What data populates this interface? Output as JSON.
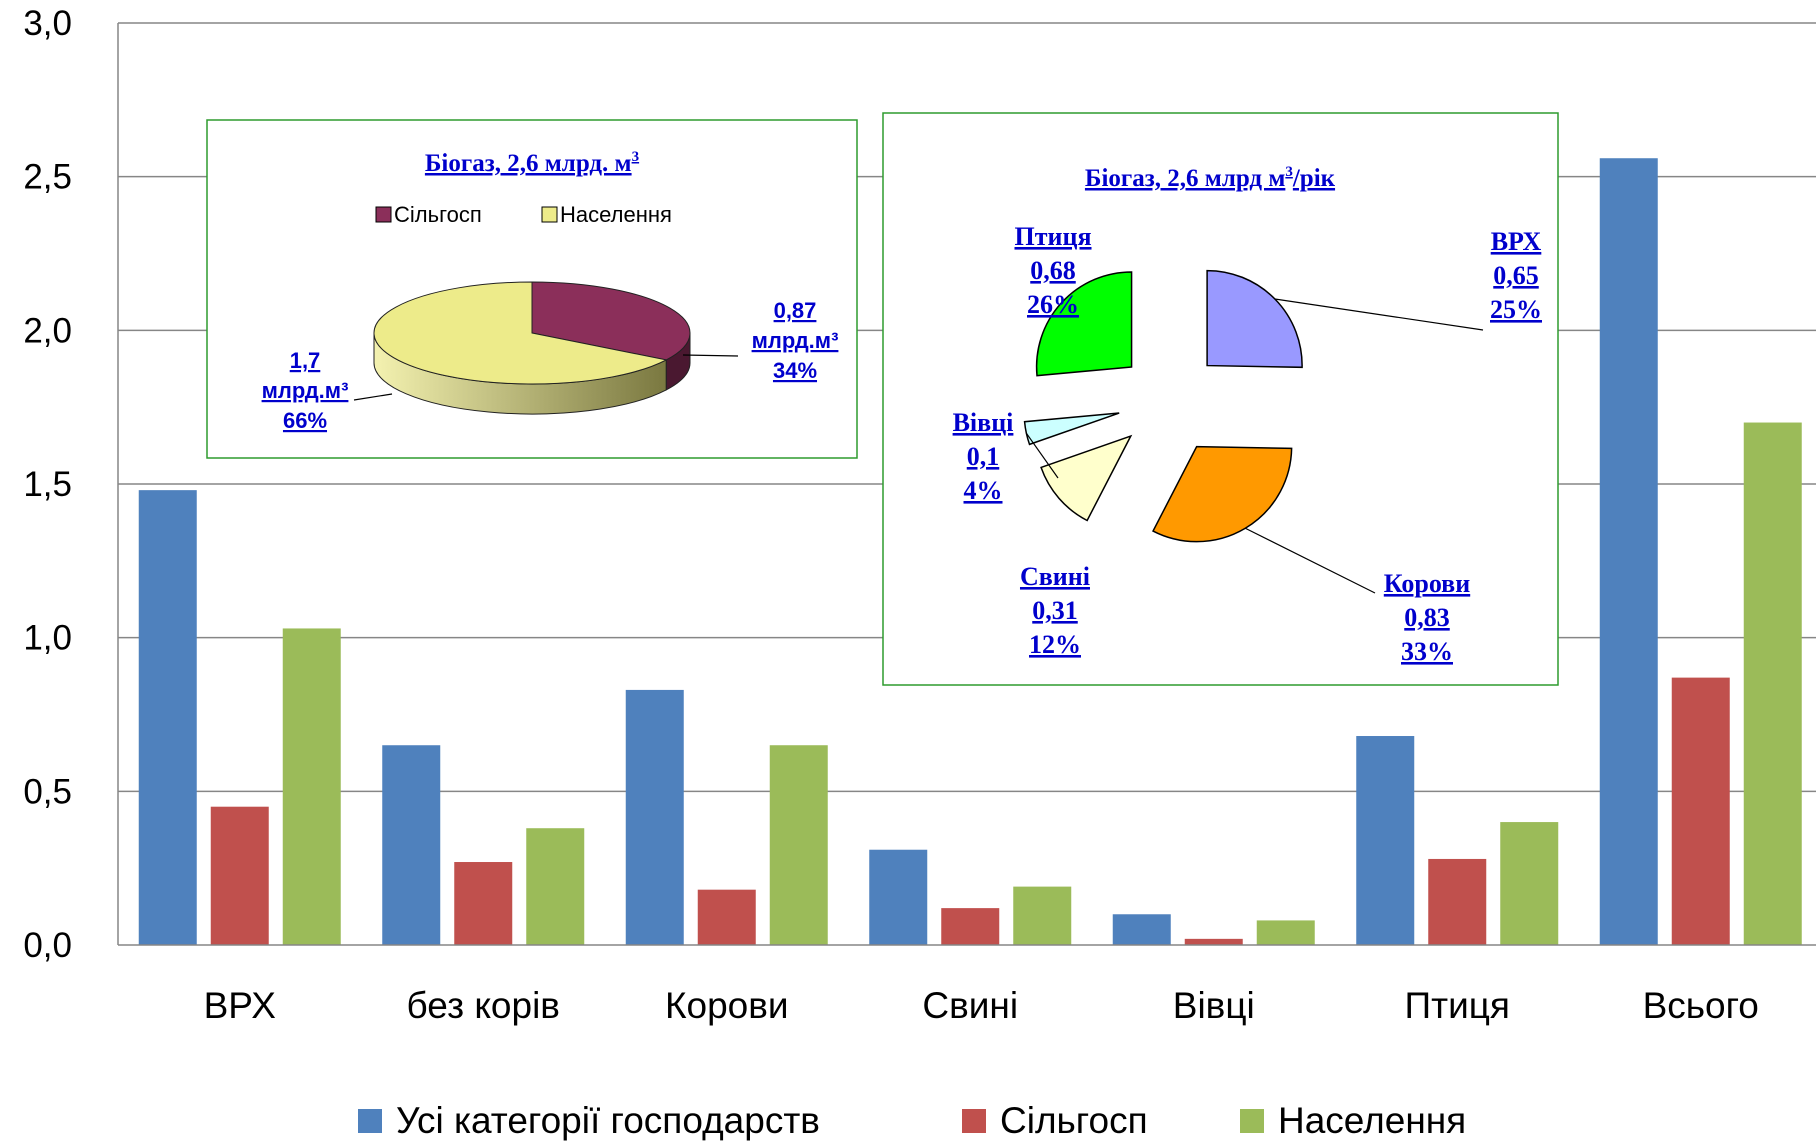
{
  "chart_data": [
    {
      "type": "bar",
      "categories": [
        "ВРХ",
        "без корів",
        "Корови",
        "Свині",
        "Вівці",
        "Птиця",
        "Всього"
      ],
      "series": [
        {
          "name": "Усі категорії господарств",
          "color": "#4F81BD",
          "values": [
            1.48,
            0.65,
            0.83,
            0.31,
            0.1,
            0.68,
            2.56
          ]
        },
        {
          "name": "Сільгосп",
          "color": "#C0504D",
          "values": [
            0.45,
            0.27,
            0.18,
            0.12,
            0.02,
            0.28,
            0.87
          ]
        },
        {
          "name": "Населення",
          "color": "#9BBB59",
          "values": [
            1.03,
            0.38,
            0.65,
            0.19,
            0.08,
            0.4,
            1.7
          ]
        }
      ],
      "ylim": [
        0,
        3.0
      ],
      "yticks": [
        "0,0",
        "0,5",
        "1,0",
        "1,5",
        "2,0",
        "2,5",
        "3,0"
      ],
      "grid": true,
      "legend": "bottom"
    },
    {
      "type": "pie",
      "title": "Біогаз,  2,6 млрд. м",
      "title_sup": "3",
      "legend_items": [
        "Сільгосп",
        "Населення"
      ],
      "slices": [
        {
          "label": "Сільгосп",
          "value": 0.87,
          "percent": 34,
          "color": "#8B2F5A",
          "label_lines": [
            "0,87",
            "млрд.м³",
            "34%"
          ]
        },
        {
          "label": "Населення",
          "value": 1.7,
          "percent": 66,
          "color": "#EDEB8A",
          "label_lines": [
            "1,7",
            "млрд.м³",
            "66%"
          ]
        }
      ]
    },
    {
      "type": "pie",
      "title": "Біогаз,  2,6 млрд  м",
      "title_sup": "3",
      "title_suffix": "/рік",
      "slices": [
        {
          "label": "ВРХ",
          "value": 0.65,
          "percent": 25,
          "color": "#9999FF",
          "label_lines": [
            "ВРХ",
            "0,65",
            "25%"
          ]
        },
        {
          "label": "Корови",
          "value": 0.83,
          "percent": 33,
          "color": "#FF9900",
          "label_lines": [
            "Корови",
            "0,83",
            "33%"
          ]
        },
        {
          "label": "Свині",
          "value": 0.31,
          "percent": 12,
          "color": "#FFFFCC",
          "label_lines": [
            "Свині",
            "0,31",
            "12%"
          ]
        },
        {
          "label": "Вівці",
          "value": 0.1,
          "percent": 4,
          "color": "#CCFFFF",
          "label_lines": [
            "Вівці",
            "0,1",
            "4%"
          ]
        },
        {
          "label": "Птиця",
          "value": 0.68,
          "percent": 26,
          "color": "#00FF00",
          "label_lines": [
            "Птиця",
            "0,68",
            "26%"
          ]
        }
      ]
    }
  ]
}
